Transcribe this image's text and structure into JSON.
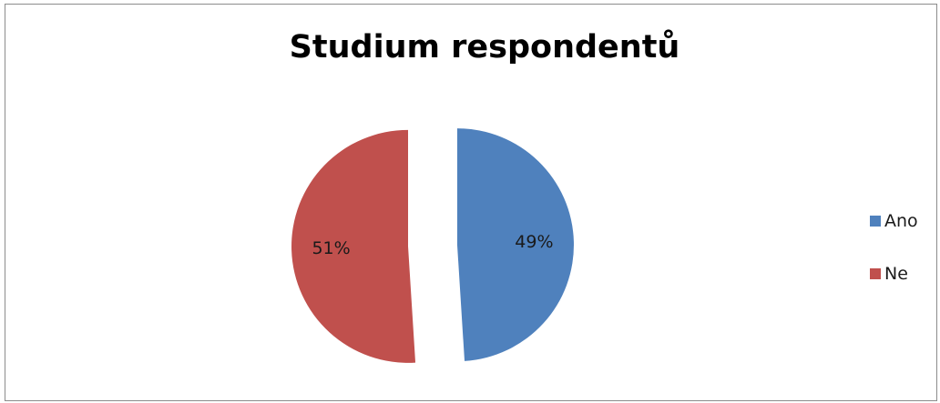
{
  "chart_data": {
    "type": "pie",
    "title": "Studium respondentů",
    "slices": [
      {
        "name": "Ano",
        "value": 49,
        "label": "49%",
        "color": "#4F81BD"
      },
      {
        "name": "Ne",
        "value": 51,
        "label": "51%",
        "color": "#C0504D"
      }
    ],
    "legend_position": "right",
    "exploded": true
  }
}
